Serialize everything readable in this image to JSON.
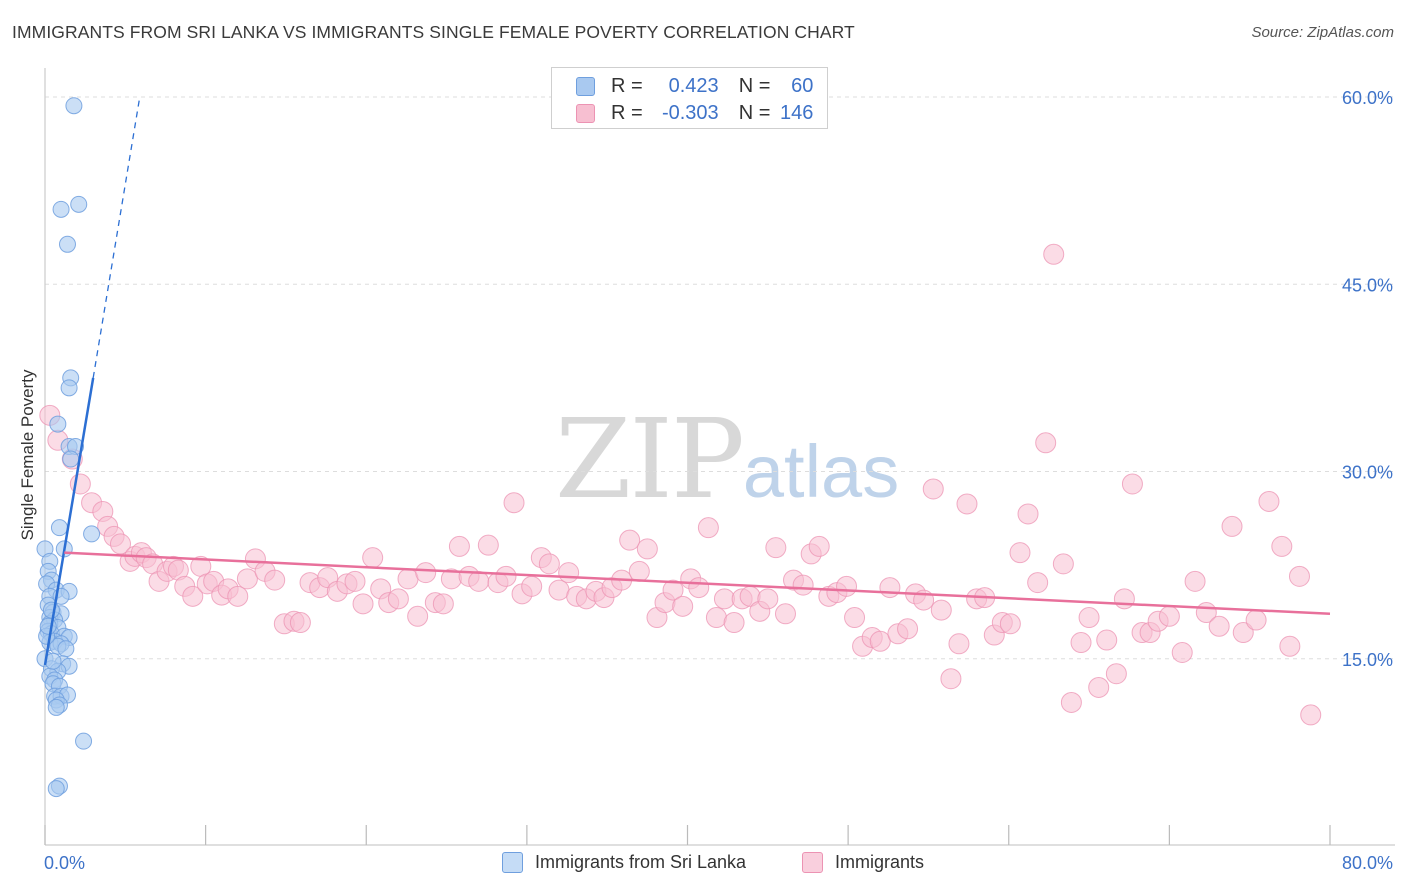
{
  "title": "IMMIGRANTS FROM SRI LANKA VS IMMIGRANTS SINGLE FEMALE POVERTY CORRELATION CHART",
  "source": "Source: ZipAtlas.com",
  "watermark": {
    "zip": "ZIP",
    "atlas": "atlas"
  },
  "legend": {
    "series1": {
      "r_label": "R =",
      "r_value": "0.423",
      "n_label": "N =",
      "n_value": "60"
    },
    "series2": {
      "r_label": "R =",
      "r_value": "-0.303",
      "n_label": "N =",
      "n_value": "146"
    }
  },
  "colors": {
    "blue_fill": "#a9c9f0",
    "blue_stroke": "#6f9fde",
    "blue_line": "#2c6fd3",
    "pink_fill": "#f7bfd1",
    "pink_stroke": "#ec93b3",
    "pink_line": "#e8709b",
    "axis_text": "#3d72c8",
    "grid": "#dddddd"
  },
  "chart_data": {
    "type": "scatter",
    "title": "IMMIGRANTS FROM SRI LANKA VS IMMIGRANTS SINGLE FEMALE POVERTY CORRELATION CHART",
    "xlabel": "",
    "ylabel": "Single Female Poverty",
    "xlim": [
      0,
      80
    ],
    "ylim": [
      0,
      60
    ],
    "x_tick_labels": [
      "0.0%",
      "80.0%"
    ],
    "y_tick_labels": [
      "15.0%",
      "30.0%",
      "45.0%",
      "60.0%"
    ],
    "y_ticks": [
      15,
      30,
      45,
      60
    ],
    "series": [
      {
        "name": "Immigrants from Sri Lanka",
        "r": 0.423,
        "n": 60,
        "trend": {
          "x0": 0.0,
          "y0": 14.5,
          "x1": 3.0,
          "y1": 37.5,
          "dash_x1": 5.9,
          "dash_y1": 60.0
        },
        "points": [
          [
            1.8,
            59.3
          ],
          [
            1.0,
            51.0
          ],
          [
            2.1,
            51.4
          ],
          [
            1.4,
            48.2
          ],
          [
            1.6,
            37.5
          ],
          [
            1.5,
            36.7
          ],
          [
            0.8,
            33.8
          ],
          [
            1.5,
            32.0
          ],
          [
            1.9,
            32.0
          ],
          [
            1.6,
            31.0
          ],
          [
            0.9,
            25.5
          ],
          [
            2.9,
            25.0
          ],
          [
            0.0,
            23.8
          ],
          [
            1.2,
            23.8
          ],
          [
            0.3,
            22.8
          ],
          [
            0.2,
            22.0
          ],
          [
            0.4,
            21.3
          ],
          [
            0.1,
            21.0
          ],
          [
            0.7,
            20.5
          ],
          [
            1.5,
            20.4
          ],
          [
            0.3,
            20.0
          ],
          [
            1.0,
            20.0
          ],
          [
            0.2,
            19.3
          ],
          [
            0.5,
            18.7
          ],
          [
            1.0,
            18.6
          ],
          [
            0.3,
            18.3
          ],
          [
            0.6,
            18.1
          ],
          [
            0.3,
            17.8
          ],
          [
            0.8,
            17.5
          ],
          [
            0.2,
            17.2
          ],
          [
            0.4,
            17.0
          ],
          [
            1.2,
            16.8
          ],
          [
            1.5,
            16.7
          ],
          [
            0.6,
            16.4
          ],
          [
            0.3,
            16.3
          ],
          [
            1.0,
            16.2
          ],
          [
            0.8,
            16.0
          ],
          [
            1.3,
            15.8
          ],
          [
            0.0,
            15.0
          ],
          [
            1.1,
            14.6
          ],
          [
            1.5,
            14.4
          ],
          [
            0.4,
            14.2
          ],
          [
            0.8,
            14.0
          ],
          [
            0.3,
            13.6
          ],
          [
            0.6,
            13.3
          ],
          [
            0.5,
            13.0
          ],
          [
            0.9,
            12.8
          ],
          [
            0.6,
            12.0
          ],
          [
            1.0,
            12.0
          ],
          [
            1.4,
            12.1
          ],
          [
            0.7,
            11.7
          ],
          [
            0.9,
            11.3
          ],
          [
            0.7,
            11.1
          ],
          [
            2.4,
            8.4
          ],
          [
            0.9,
            4.8
          ],
          [
            0.7,
            4.6
          ],
          [
            0.1,
            16.8
          ],
          [
            0.2,
            17.6
          ],
          [
            0.5,
            14.8
          ],
          [
            0.4,
            18.9
          ]
        ]
      },
      {
        "name": "Immigrants",
        "r": -0.303,
        "n": 146,
        "trend": {
          "x0": 1.2,
          "y0": 23.5,
          "x1": 80.0,
          "y1": 18.6
        },
        "points": [
          [
            0.3,
            34.5
          ],
          [
            0.8,
            32.5
          ],
          [
            1.7,
            31.0
          ],
          [
            2.2,
            29.0
          ],
          [
            2.9,
            27.5
          ],
          [
            3.6,
            26.8
          ],
          [
            3.9,
            25.6
          ],
          [
            4.3,
            24.8
          ],
          [
            4.7,
            24.2
          ],
          [
            5.3,
            22.8
          ],
          [
            5.6,
            23.2
          ],
          [
            6.0,
            23.5
          ],
          [
            6.3,
            23.1
          ],
          [
            6.7,
            22.6
          ],
          [
            7.1,
            21.2
          ],
          [
            7.6,
            22.0
          ],
          [
            8.0,
            22.4
          ],
          [
            8.3,
            22.1
          ],
          [
            8.7,
            20.8
          ],
          [
            9.2,
            20.0
          ],
          [
            9.7,
            22.4
          ],
          [
            10.1,
            21.0
          ],
          [
            10.5,
            21.2
          ],
          [
            11.0,
            20.1
          ],
          [
            11.4,
            20.6
          ],
          [
            12.0,
            20.0
          ],
          [
            12.6,
            21.4
          ],
          [
            13.1,
            23.0
          ],
          [
            13.7,
            22.0
          ],
          [
            14.3,
            21.3
          ],
          [
            14.9,
            17.8
          ],
          [
            15.5,
            18.0
          ],
          [
            15.9,
            17.9
          ],
          [
            16.5,
            21.1
          ],
          [
            17.1,
            20.7
          ],
          [
            17.6,
            21.5
          ],
          [
            18.2,
            20.4
          ],
          [
            18.8,
            21.0
          ],
          [
            19.3,
            21.2
          ],
          [
            19.8,
            19.4
          ],
          [
            20.4,
            23.1
          ],
          [
            20.9,
            20.6
          ],
          [
            21.4,
            19.5
          ],
          [
            22.0,
            19.8
          ],
          [
            22.6,
            21.4
          ],
          [
            23.2,
            18.4
          ],
          [
            23.7,
            21.9
          ],
          [
            24.3,
            19.5
          ],
          [
            24.8,
            19.4
          ],
          [
            25.3,
            21.4
          ],
          [
            25.8,
            24.0
          ],
          [
            26.4,
            21.6
          ],
          [
            27.0,
            21.2
          ],
          [
            27.6,
            24.1
          ],
          [
            28.2,
            21.1
          ],
          [
            28.7,
            21.6
          ],
          [
            29.2,
            27.5
          ],
          [
            29.7,
            20.2
          ],
          [
            30.3,
            20.8
          ],
          [
            30.9,
            23.1
          ],
          [
            31.4,
            22.6
          ],
          [
            32.0,
            20.5
          ],
          [
            32.6,
            21.9
          ],
          [
            33.1,
            20.0
          ],
          [
            33.7,
            19.8
          ],
          [
            34.3,
            20.4
          ],
          [
            34.8,
            19.9
          ],
          [
            35.3,
            20.7
          ],
          [
            35.9,
            21.3
          ],
          [
            36.4,
            24.5
          ],
          [
            37.0,
            22.0
          ],
          [
            37.5,
            23.8
          ],
          [
            38.1,
            18.3
          ],
          [
            38.6,
            19.5
          ],
          [
            39.1,
            20.5
          ],
          [
            39.7,
            19.2
          ],
          [
            40.2,
            21.4
          ],
          [
            40.7,
            20.7
          ],
          [
            41.3,
            25.5
          ],
          [
            41.8,
            18.3
          ],
          [
            42.3,
            19.8
          ],
          [
            42.9,
            17.9
          ],
          [
            43.4,
            19.8
          ],
          [
            43.9,
            20.0
          ],
          [
            44.5,
            18.8
          ],
          [
            45.0,
            19.8
          ],
          [
            45.5,
            23.9
          ],
          [
            46.1,
            18.6
          ],
          [
            46.6,
            21.3
          ],
          [
            47.2,
            20.9
          ],
          [
            47.7,
            23.4
          ],
          [
            48.2,
            24.0
          ],
          [
            48.8,
            20.0
          ],
          [
            49.3,
            20.3
          ],
          [
            49.9,
            20.8
          ],
          [
            50.4,
            18.3
          ],
          [
            50.9,
            16.0
          ],
          [
            51.5,
            16.7
          ],
          [
            52.0,
            16.4
          ],
          [
            52.6,
            20.7
          ],
          [
            53.1,
            17.0
          ],
          [
            53.7,
            17.4
          ],
          [
            54.2,
            20.2
          ],
          [
            54.7,
            19.7
          ],
          [
            55.3,
            28.6
          ],
          [
            55.8,
            18.9
          ],
          [
            56.4,
            13.4
          ],
          [
            56.9,
            16.2
          ],
          [
            57.4,
            27.4
          ],
          [
            58.0,
            19.8
          ],
          [
            58.5,
            19.9
          ],
          [
            59.1,
            16.9
          ],
          [
            59.6,
            17.9
          ],
          [
            60.1,
            17.8
          ],
          [
            60.7,
            23.5
          ],
          [
            61.2,
            26.6
          ],
          [
            61.8,
            21.1
          ],
          [
            62.3,
            32.3
          ],
          [
            62.8,
            47.4
          ],
          [
            63.4,
            22.6
          ],
          [
            63.9,
            11.5
          ],
          [
            64.5,
            16.3
          ],
          [
            65.0,
            18.3
          ],
          [
            65.6,
            12.7
          ],
          [
            66.1,
            16.5
          ],
          [
            66.7,
            13.8
          ],
          [
            67.2,
            19.8
          ],
          [
            67.7,
            29.0
          ],
          [
            68.3,
            17.1
          ],
          [
            68.8,
            17.1
          ],
          [
            69.3,
            18.0
          ],
          [
            70.0,
            18.4
          ],
          [
            70.8,
            15.5
          ],
          [
            71.6,
            21.2
          ],
          [
            72.3,
            18.7
          ],
          [
            73.1,
            17.6
          ],
          [
            73.9,
            25.6
          ],
          [
            74.6,
            17.1
          ],
          [
            75.4,
            18.1
          ],
          [
            76.2,
            27.6
          ],
          [
            77.0,
            24.0
          ],
          [
            77.5,
            16.0
          ],
          [
            78.1,
            21.6
          ],
          [
            78.8,
            10.5
          ]
        ]
      }
    ]
  },
  "bottom_legend": [
    "Immigrants from Sri Lanka",
    "Immigrants"
  ]
}
